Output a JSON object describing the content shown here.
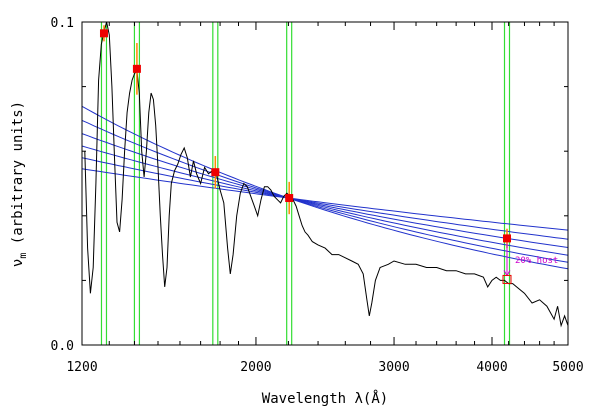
{
  "chart_data": {
    "type": "line",
    "title": "",
    "xlabel": "Wavelength λ(Å)",
    "ylabel_main": "ν",
    "ylabel_sub": "m",
    "ylabel_rest": " (arbitrary units)",
    "xscale": "log",
    "xlim": [
      1200,
      5000
    ],
    "ylim": [
      0.0,
      0.1
    ],
    "xticks": [
      {
        "value": 1200,
        "label": "1200"
      },
      {
        "value": 2000,
        "label": "2000"
      },
      {
        "value": 3000,
        "label": "3000"
      },
      {
        "value": 4000,
        "label": "4000"
      },
      {
        "value": 5000,
        "label": "5000"
      }
    ],
    "xminor": [
      1300,
      1400,
      1500,
      1600,
      1700,
      1800,
      1900,
      2200,
      2400,
      2600,
      2800,
      3200,
      3400,
      3600,
      3800,
      4200,
      4400,
      4600,
      4800
    ],
    "yticks": [
      {
        "value": 0.0,
        "label": "0.0"
      },
      {
        "value": 0.1,
        "label": "0.1"
      }
    ],
    "yminor": [
      0.02,
      0.04,
      0.06,
      0.08
    ],
    "filter_bands": [
      1280,
      1410,
      1775,
      2205,
      4180
    ],
    "photometry": [
      {
        "x": 1280,
        "y": 0.0965,
        "err": 0.0025
      },
      {
        "x": 1410,
        "y": 0.0855,
        "err": 0.008
      },
      {
        "x": 1775,
        "y": 0.0535,
        "err": 0.005
      },
      {
        "x": 2205,
        "y": 0.0455,
        "err": 0.005
      },
      {
        "x": 4180,
        "y": 0.033,
        "err": 0.003
      }
    ],
    "host_corrected_point": {
      "x": 4180,
      "y": 0.0203
    },
    "annotation": "20% host",
    "powerlaw_pivot": {
      "x": 2200,
      "y": 0.0455
    },
    "powerlaw_slopes": [
      -0.8,
      -0.7,
      -0.6,
      -0.5,
      -0.4,
      -0.3
    ],
    "spectrum": [
      [
        1210,
        0.06
      ],
      [
        1220,
        0.03
      ],
      [
        1230,
        0.016
      ],
      [
        1240,
        0.024
      ],
      [
        1250,
        0.05
      ],
      [
        1260,
        0.082
      ],
      [
        1270,
        0.093
      ],
      [
        1280,
        0.097
      ],
      [
        1290,
        0.1
      ],
      [
        1300,
        0.096
      ],
      [
        1310,
        0.08
      ],
      [
        1320,
        0.058
      ],
      [
        1330,
        0.038
      ],
      [
        1340,
        0.035
      ],
      [
        1350,
        0.045
      ],
      [
        1360,
        0.06
      ],
      [
        1370,
        0.072
      ],
      [
        1380,
        0.078
      ],
      [
        1390,
        0.082
      ],
      [
        1400,
        0.084
      ],
      [
        1410,
        0.085
      ],
      [
        1420,
        0.078
      ],
      [
        1430,
        0.06
      ],
      [
        1440,
        0.052
      ],
      [
        1450,
        0.06
      ],
      [
        1460,
        0.072
      ],
      [
        1470,
        0.078
      ],
      [
        1480,
        0.076
      ],
      [
        1490,
        0.068
      ],
      [
        1500,
        0.055
      ],
      [
        1510,
        0.04
      ],
      [
        1520,
        0.028
      ],
      [
        1530,
        0.018
      ],
      [
        1540,
        0.024
      ],
      [
        1550,
        0.04
      ],
      [
        1560,
        0.05
      ],
      [
        1575,
        0.054
      ],
      [
        1590,
        0.056
      ],
      [
        1605,
        0.059
      ],
      [
        1620,
        0.061
      ],
      [
        1635,
        0.058
      ],
      [
        1650,
        0.052
      ],
      [
        1665,
        0.057
      ],
      [
        1680,
        0.053
      ],
      [
        1700,
        0.05
      ],
      [
        1720,
        0.055
      ],
      [
        1740,
        0.053
      ],
      [
        1760,
        0.054
      ],
      [
        1780,
        0.053
      ],
      [
        1800,
        0.048
      ],
      [
        1820,
        0.044
      ],
      [
        1840,
        0.03
      ],
      [
        1855,
        0.022
      ],
      [
        1870,
        0.028
      ],
      [
        1890,
        0.04
      ],
      [
        1910,
        0.047
      ],
      [
        1930,
        0.05
      ],
      [
        1950,
        0.049
      ],
      [
        1970,
        0.046
      ],
      [
        1990,
        0.043
      ],
      [
        2010,
        0.04
      ],
      [
        2030,
        0.045
      ],
      [
        2050,
        0.049
      ],
      [
        2070,
        0.049
      ],
      [
        2090,
        0.048
      ],
      [
        2110,
        0.046
      ],
      [
        2130,
        0.045
      ],
      [
        2150,
        0.044
      ],
      [
        2170,
        0.046
      ],
      [
        2190,
        0.047
      ],
      [
        2210,
        0.046
      ],
      [
        2230,
        0.045
      ],
      [
        2250,
        0.043
      ],
      [
        2270,
        0.04
      ],
      [
        2290,
        0.037
      ],
      [
        2310,
        0.035
      ],
      [
        2330,
        0.034
      ],
      [
        2360,
        0.032
      ],
      [
        2400,
        0.031
      ],
      [
        2450,
        0.03
      ],
      [
        2500,
        0.028
      ],
      [
        2550,
        0.028
      ],
      [
        2600,
        0.027
      ],
      [
        2650,
        0.026
      ],
      [
        2700,
        0.025
      ],
      [
        2740,
        0.022
      ],
      [
        2770,
        0.014
      ],
      [
        2790,
        0.009
      ],
      [
        2810,
        0.013
      ],
      [
        2840,
        0.02
      ],
      [
        2880,
        0.024
      ],
      [
        2950,
        0.025
      ],
      [
        3000,
        0.026
      ],
      [
        3100,
        0.025
      ],
      [
        3200,
        0.025
      ],
      [
        3300,
        0.024
      ],
      [
        3400,
        0.024
      ],
      [
        3500,
        0.023
      ],
      [
        3600,
        0.023
      ],
      [
        3700,
        0.022
      ],
      [
        3800,
        0.022
      ],
      [
        3900,
        0.021
      ],
      [
        3950,
        0.018
      ],
      [
        4000,
        0.02
      ],
      [
        4050,
        0.021
      ],
      [
        4100,
        0.02
      ],
      [
        4150,
        0.02
      ],
      [
        4200,
        0.019
      ],
      [
        4250,
        0.019
      ],
      [
        4300,
        0.018
      ],
      [
        4400,
        0.016
      ],
      [
        4500,
        0.013
      ],
      [
        4600,
        0.014
      ],
      [
        4700,
        0.012
      ],
      [
        4800,
        0.008
      ],
      [
        4850,
        0.012
      ],
      [
        4900,
        0.006
      ],
      [
        4950,
        0.009
      ],
      [
        5000,
        0.006
      ]
    ],
    "colors": {
      "spectrum": "#000000",
      "band": "#33dd33",
      "powerlaw": "#2233cc",
      "marker": "#ee0000",
      "errorbar": "#ff8800",
      "annotation": "#cc00cc"
    }
  }
}
